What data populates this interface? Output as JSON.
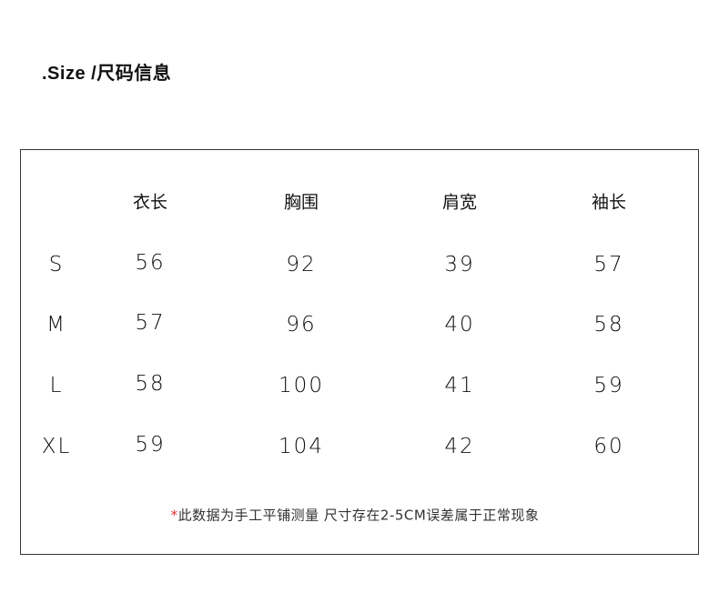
{
  "title": ".Size /尺码信息",
  "table": {
    "headers": [
      "衣长",
      "胸围",
      "肩宽",
      "袖长"
    ],
    "rows": [
      {
        "size": "S",
        "values": [
          "56",
          "92",
          "39",
          "57"
        ]
      },
      {
        "size": "M",
        "values": [
          "57",
          "96",
          "40",
          "58"
        ]
      },
      {
        "size": "L",
        "values": [
          "58",
          "100",
          "41",
          "59"
        ]
      },
      {
        "size": "XL",
        "values": [
          "59",
          "104",
          "42",
          "60"
        ]
      }
    ]
  },
  "note": {
    "star": "*",
    "text": "此数据为手工平铺测量 尺寸存在2-5CM误差属于正常现象",
    "star_color": "#dd3333"
  }
}
